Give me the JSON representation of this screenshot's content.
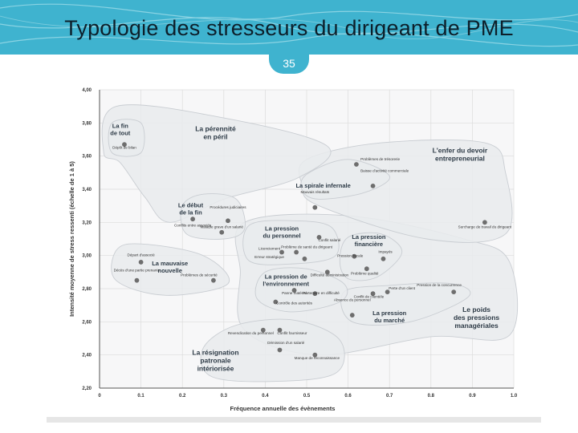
{
  "header": {
    "title": "Typologie des stresseurs du dirigeant de PME",
    "page_number": "35"
  },
  "colors": {
    "banner": "#3fb3cf",
    "cluster_fill": "#e9ebed",
    "cluster_stroke": "#c9cdd2",
    "point": "#6e6e6e"
  },
  "chart_data": {
    "type": "scatter",
    "xlabel": "Fréquence annuelle des évènements",
    "ylabel": "Intensité moyenne de stress ressenti (échelle de 1 à 5)",
    "xlim": [
      0,
      1.0
    ],
    "ylim": [
      2.2,
      4.0
    ],
    "x_ticks": [
      "0",
      "0.1",
      "0.2",
      "0.3",
      "0.4",
      "0.5",
      "0.6",
      "0.7",
      "0.8",
      "0.9",
      "1.0"
    ],
    "y_ticks": [
      "2,20",
      "2,40",
      "2,60",
      "2,80",
      "3,00",
      "3,20",
      "3,40",
      "3,60",
      "3,80",
      "4,00"
    ],
    "grid": true,
    "clusters": [
      {
        "id": "fin-de-tout",
        "label": [
          "La fin",
          "de tout"
        ],
        "label_pos": [
          0.05,
          3.77
        ],
        "label_size": 7.5,
        "points": [
          [
            0.03,
            3.62
          ],
          [
            0.1,
            3.62
          ],
          [
            0.1,
            3.8
          ],
          [
            0.03,
            3.8
          ]
        ]
      },
      {
        "id": "perennite",
        "label": [
          "La pérennité",
          "en péril"
        ],
        "label_pos": [
          0.28,
          3.75
        ],
        "label_size": 8.5,
        "points": [
          [
            0.01,
            3.62
          ],
          [
            0.04,
            3.9
          ],
          [
            0.3,
            3.83
          ],
          [
            0.55,
            3.66
          ],
          [
            0.48,
            3.47
          ],
          [
            0.3,
            3.34
          ],
          [
            0.17,
            3.2
          ],
          [
            0.11,
            3.35
          ],
          [
            0.05,
            3.56
          ]
        ]
      },
      {
        "id": "debut-fin",
        "label": [
          "Le début",
          "de la fin"
        ],
        "label_pos": [
          0.22,
          3.29
        ],
        "label_size": 7.5,
        "points": [
          [
            0.2,
            3.3
          ],
          [
            0.25,
            3.37
          ],
          [
            0.33,
            3.34
          ],
          [
            0.35,
            3.16
          ],
          [
            0.3,
            3.1
          ],
          [
            0.21,
            3.13
          ]
        ]
      },
      {
        "id": "mauvaise-nouvelle",
        "label": [
          "La mauvaise",
          "nouvelle"
        ],
        "label_pos": [
          0.17,
          2.94
        ],
        "label_size": 7.5,
        "points": [
          [
            0.04,
            3.03
          ],
          [
            0.1,
            3.07
          ],
          [
            0.25,
            3.0
          ],
          [
            0.31,
            2.83
          ],
          [
            0.16,
            2.76
          ],
          [
            0.04,
            2.85
          ]
        ]
      },
      {
        "id": "enfer-devoir",
        "label": [
          "L'enfer du devoir",
          "entrepreneurial"
        ],
        "label_pos": [
          0.87,
          3.62
        ],
        "label_size": 8.5,
        "points": [
          [
            0.5,
            3.58
          ],
          [
            0.68,
            3.68
          ],
          [
            0.93,
            3.68
          ],
          [
            0.98,
            3.5
          ],
          [
            0.98,
            3.13
          ],
          [
            0.79,
            3.1
          ],
          [
            0.53,
            3.3
          ],
          [
            0.49,
            3.42
          ]
        ]
      },
      {
        "id": "spirale-infernale",
        "label": [
          "La spirale infernale"
        ],
        "label_pos": [
          0.54,
          3.41
        ],
        "label_size": 7.5,
        "points": [
          [
            0.5,
            3.49
          ],
          [
            0.6,
            3.58
          ],
          [
            0.7,
            3.48
          ],
          [
            0.64,
            3.38
          ],
          [
            0.53,
            3.34
          ],
          [
            0.49,
            3.39
          ]
        ]
      },
      {
        "id": "pression-personnel",
        "label": [
          "La pression",
          "du personnel"
        ],
        "label_pos": [
          0.44,
          3.15
        ],
        "label_size": 7.5,
        "points": [
          [
            0.36,
            3.18
          ],
          [
            0.47,
            3.21
          ],
          [
            0.56,
            3.17
          ],
          [
            0.57,
            3.0
          ],
          [
            0.47,
            2.95
          ],
          [
            0.36,
            2.97
          ]
        ]
      },
      {
        "id": "pression-financiere",
        "label": [
          "La pression",
          "financière"
        ],
        "label_pos": [
          0.65,
          3.1
        ],
        "label_size": 7.5,
        "points": [
          [
            0.6,
            3.11
          ],
          [
            0.68,
            3.13
          ],
          [
            0.73,
            3.02
          ],
          [
            0.67,
            2.87
          ],
          [
            0.6,
            2.86
          ],
          [
            0.58,
            2.97
          ]
        ]
      },
      {
        "id": "pression-environnement",
        "label": [
          "La pression de",
          "l'environnement"
        ],
        "label_pos": [
          0.45,
          2.86
        ],
        "label_size": 7.5,
        "points": [
          [
            0.4,
            2.9
          ],
          [
            0.5,
            2.92
          ],
          [
            0.59,
            2.83
          ],
          [
            0.58,
            2.72
          ],
          [
            0.46,
            2.66
          ],
          [
            0.38,
            2.74
          ]
        ]
      },
      {
        "id": "pression-marche",
        "label": [
          "La pression",
          "du marché"
        ],
        "label_pos": [
          0.7,
          2.64
        ],
        "label_size": 7.5,
        "points": [
          [
            0.59,
            2.78
          ],
          [
            0.7,
            2.82
          ],
          [
            0.85,
            2.83
          ],
          [
            0.89,
            2.75
          ],
          [
            0.75,
            2.6
          ],
          [
            0.61,
            2.6
          ]
        ]
      },
      {
        "id": "pressions-manageriales",
        "label": [
          "Le poids",
          "des pressions",
          "managériales"
        ],
        "label_pos": [
          0.91,
          2.66
        ],
        "label_size": 8.5,
        "points": [
          [
            0.35,
            3.2
          ],
          [
            0.6,
            3.24
          ],
          [
            0.88,
            3.1
          ],
          [
            0.99,
            2.96
          ],
          [
            0.99,
            2.52
          ],
          [
            0.8,
            2.51
          ],
          [
            0.53,
            2.4
          ],
          [
            0.35,
            2.55
          ],
          [
            0.34,
            2.9
          ]
        ]
      },
      {
        "id": "resignation",
        "label": [
          "La résignation",
          "patronale",
          "intériorisée"
        ],
        "label_pos": [
          0.28,
          2.4
        ],
        "label_size": 8.5,
        "points": [
          [
            0.33,
            2.58
          ],
          [
            0.47,
            2.61
          ],
          [
            0.58,
            2.49
          ],
          [
            0.57,
            2.29
          ],
          [
            0.42,
            2.24
          ],
          [
            0.27,
            2.27
          ],
          [
            0.25,
            2.44
          ]
        ]
      }
    ],
    "points": [
      {
        "label": "Dépôt de bilan",
        "x": 0.06,
        "y": 3.67,
        "lx": 0.06,
        "ly": 3.645,
        "anchor": "middle"
      },
      {
        "label": "Problèmes de trésorerie",
        "x": 0.62,
        "y": 3.55,
        "lx": 0.63,
        "ly": 3.575,
        "anchor": "start"
      },
      {
        "label": "Baisse d'activité commerciale",
        "x": 0.66,
        "y": 3.42,
        "lx": 0.63,
        "ly": 3.505,
        "anchor": "start"
      },
      {
        "label": "Mauvais résultats",
        "x": 0.52,
        "y": 3.29,
        "lx": 0.52,
        "ly": 3.375,
        "anchor": "middle"
      },
      {
        "label": "Surcharge de travail du dirigeant",
        "x": 0.93,
        "y": 3.2,
        "lx": 0.93,
        "ly": 3.165,
        "anchor": "middle"
      },
      {
        "label": "Conflits entre associés",
        "x": 0.225,
        "y": 3.22,
        "lx": 0.225,
        "ly": 3.175,
        "anchor": "middle"
      },
      {
        "label": "Procédures judiciaires",
        "x": 0.31,
        "y": 3.21,
        "lx": 0.31,
        "ly": 3.285,
        "anchor": "middle"
      },
      {
        "label": "Maladie grave d'un salarié",
        "x": 0.295,
        "y": 3.14,
        "lx": 0.295,
        "ly": 3.165,
        "anchor": "middle"
      },
      {
        "label": "Départ d'associé",
        "x": 0.1,
        "y": 2.96,
        "lx": 0.1,
        "ly": 2.995,
        "anchor": "middle"
      },
      {
        "label": "Décès d'une partie prenante",
        "x": 0.09,
        "y": 2.85,
        "lx": 0.09,
        "ly": 2.905,
        "anchor": "middle"
      },
      {
        "label": "Problèmes de sécurité",
        "x": 0.275,
        "y": 2.85,
        "lx": 0.24,
        "ly": 2.875,
        "anchor": "middle"
      },
      {
        "label": "Conflit salarié",
        "x": 0.53,
        "y": 3.11,
        "lx": 0.555,
        "ly": 3.085,
        "anchor": "middle"
      },
      {
        "label": "Licenciement",
        "x": 0.44,
        "y": 3.02,
        "lx": 0.41,
        "ly": 3.035,
        "anchor": "middle"
      },
      {
        "label": "Problème de santé du dirigeant",
        "x": 0.475,
        "y": 3.02,
        "lx": 0.5,
        "ly": 3.045,
        "anchor": "middle"
      },
      {
        "label": "Erreur stratégique",
        "x": 0.495,
        "y": 2.98,
        "lx": 0.41,
        "ly": 2.985,
        "anchor": "middle"
      },
      {
        "label": "Impayés",
        "x": 0.685,
        "y": 2.98,
        "lx": 0.69,
        "ly": 3.015,
        "anchor": "middle"
      },
      {
        "label": "Pression fiscale",
        "x": 0.615,
        "y": 2.995,
        "lx": 0.605,
        "ly": 2.99,
        "anchor": "middle"
      },
      {
        "label": "Problème qualité",
        "x": 0.645,
        "y": 2.92,
        "lx": 0.64,
        "ly": 2.885,
        "anchor": "middle"
      },
      {
        "label": "Difficulté administration",
        "x": 0.55,
        "y": 2.9,
        "lx": 0.555,
        "ly": 2.875,
        "anchor": "middle"
      },
      {
        "label": "Panne matériel",
        "x": 0.47,
        "y": 2.79,
        "lx": 0.47,
        "ly": 2.765,
        "anchor": "middle"
      },
      {
        "label": "Partenaire en difficulté",
        "x": 0.52,
        "y": 2.77,
        "lx": 0.535,
        "ly": 2.765,
        "anchor": "middle"
      },
      {
        "label": "Contrôle des autorités",
        "x": 0.425,
        "y": 2.72,
        "lx": 0.47,
        "ly": 2.705,
        "anchor": "middle"
      },
      {
        "label": "Perte d'un client",
        "x": 0.695,
        "y": 2.78,
        "lx": 0.73,
        "ly": 2.795,
        "anchor": "middle"
      },
      {
        "label": "Conflit de clientèle",
        "x": 0.66,
        "y": 2.77,
        "lx": 0.65,
        "ly": 2.745,
        "anchor": "middle"
      },
      {
        "label": "Pression de la concurrence",
        "x": 0.855,
        "y": 2.78,
        "lx": 0.82,
        "ly": 2.815,
        "anchor": "middle"
      },
      {
        "label": "Absence du personnel",
        "x": 0.61,
        "y": 2.64,
        "lx": 0.61,
        "ly": 2.725,
        "anchor": "middle"
      },
      {
        "label": "Revendication du personnel",
        "x": 0.395,
        "y": 2.55,
        "lx": 0.365,
        "ly": 2.525,
        "anchor": "middle"
      },
      {
        "label": "Conflit fournisseur",
        "x": 0.435,
        "y": 2.55,
        "lx": 0.465,
        "ly": 2.525,
        "anchor": "middle"
      },
      {
        "label": "Démission d'un salarié",
        "x": 0.435,
        "y": 2.43,
        "lx": 0.45,
        "ly": 2.465,
        "anchor": "middle"
      },
      {
        "label": "Manque de reconnaissance",
        "x": 0.52,
        "y": 2.4,
        "lx": 0.525,
        "ly": 2.375,
        "anchor": "middle"
      }
    ]
  }
}
